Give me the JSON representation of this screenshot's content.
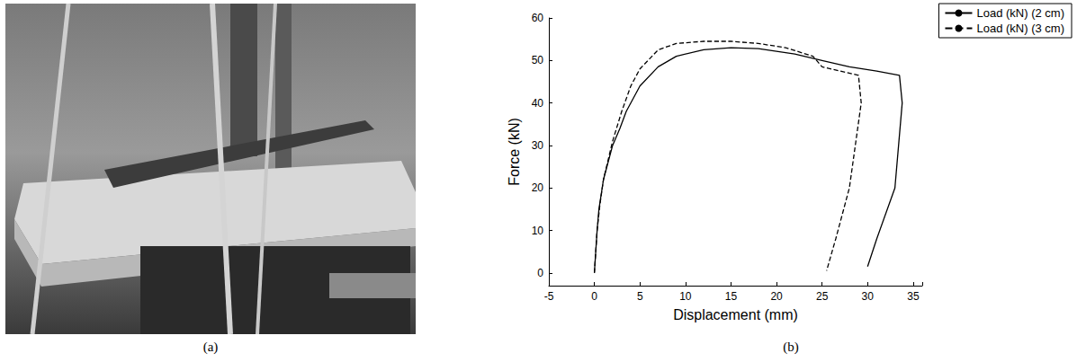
{
  "photo": {
    "caption": "(a)"
  },
  "chart_data": {
    "type": "line",
    "caption": "(b)",
    "xlabel": "Displacement (mm)",
    "ylabel": "Force (kN)",
    "xlim": [
      -5,
      36
    ],
    "ylim": [
      -3,
      60
    ],
    "xticks": [
      -5,
      0,
      5,
      10,
      15,
      20,
      25,
      30,
      35
    ],
    "yticks": [
      0,
      10,
      20,
      30,
      40,
      50,
      60
    ],
    "legend": "upper right",
    "series": [
      {
        "name": "Load (kN) (2 cm)",
        "color": "#000000",
        "line_style": "solid",
        "x": [
          0,
          0.3,
          0.5,
          1,
          2,
          2.8,
          3.5,
          5,
          7,
          9,
          12,
          15,
          18,
          22,
          25,
          28,
          31,
          33.5,
          33.8,
          33,
          31,
          30
        ],
        "values": [
          0,
          10,
          15,
          22,
          30,
          34,
          38,
          44,
          48.5,
          51,
          52.5,
          53,
          52.8,
          51.5,
          50,
          48.5,
          47.5,
          46.5,
          40,
          20,
          8,
          1.5
        ]
      },
      {
        "name": "Load (kN) (3 cm)",
        "color": "#000000",
        "line_style": "dashed",
        "x": [
          0,
          0.3,
          0.6,
          1,
          2,
          3,
          4,
          5,
          7,
          9,
          12,
          15,
          18,
          21,
          24,
          25,
          27,
          29,
          29.3,
          28,
          26.5,
          25.5
        ],
        "values": [
          0,
          10,
          16,
          22,
          31,
          38,
          44,
          48,
          52.5,
          54,
          54.5,
          54.5,
          54,
          53,
          51,
          48.5,
          47.5,
          46.5,
          40,
          20,
          8,
          0.5
        ]
      }
    ]
  }
}
